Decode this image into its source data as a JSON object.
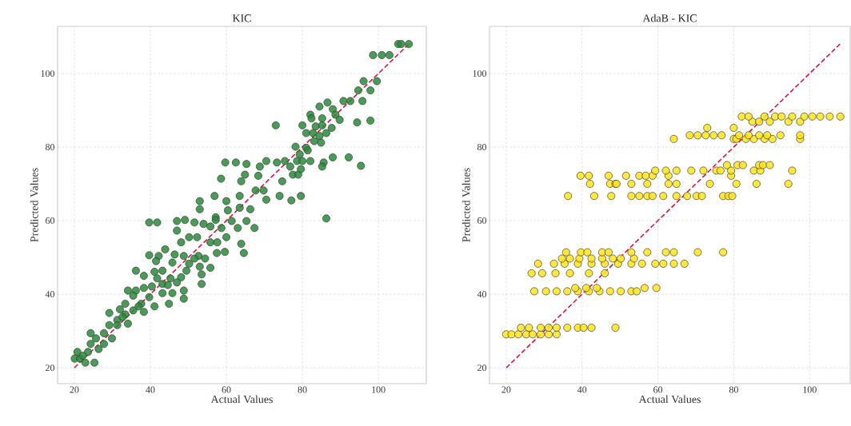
{
  "chart_data": [
    {
      "type": "scatter",
      "title": "KIC",
      "xlabel": "Actual Values",
      "ylabel": "Predicted Values",
      "xlim": [
        15.6,
        112.6
      ],
      "ylim": [
        15.7,
        112.8
      ],
      "xticks": [
        20,
        40,
        60,
        80,
        100
      ],
      "yticks": [
        20,
        40,
        60,
        80,
        100
      ],
      "grid": true,
      "series": [
        {
          "color": "#2a8a3a",
          "marker": "circle",
          "x": [
            105.2,
            106,
            108,
            98.6,
            100.9,
            102.9,
            96.1,
            99.6,
            94.7,
            97.9,
            95.8,
            90.8,
            92.6,
            84.5,
            86.6,
            88,
            88.7,
            89.8,
            82.1,
            82.4,
            85.2,
            94.4,
            97.9,
            73,
            80,
            83.5,
            85.2,
            87.7,
            81,
            82.8,
            84.5,
            86.3,
            83.1,
            84.9,
            78.2,
            81,
            79.3,
            81.4,
            59.7,
            62.5,
            65.3,
            68.8,
            70.5,
            73.3,
            75.4,
            78.6,
            80,
            82.1,
            85.6,
            88,
            92.2,
            95.4,
            85.2,
            76.8,
            64.9,
            63.9,
            58.6,
            68.4,
            74.7,
            77.5,
            78.9,
            79.6,
            67.7,
            69.8,
            70.5,
            74,
            77.1,
            79.6,
            86.3,
            56.9,
            53,
            53,
            60,
            63.5,
            63.5,
            66.3,
            60.4,
            57.2,
            57.2,
            61.4,
            65.3,
            67.4,
            63,
            58.7,
            54,
            55.8,
            51.6,
            47,
            47,
            39.7,
            41.8,
            49.1,
            50.2,
            52.3,
            48.1,
            55.8,
            57.6,
            60,
            63.9,
            64.6,
            59.6,
            57.5,
            43.9,
            39.7,
            42.2,
            46.4,
            48.8,
            52.7,
            54.4,
            41.5,
            45.8,
            50.2,
            55.8,
            53.5,
            53.5,
            48.8,
            48.8,
            44.9,
            36.2,
            38.3,
            41.1,
            43.2,
            45.3,
            48.1,
            49.5,
            47,
            43.2,
            40.4,
            38.3,
            36.2,
            34.1,
            35.5,
            39.7,
            43.2,
            45.8,
            33.4,
            37.6,
            41.1,
            32,
            35.5,
            38.3,
            29.2,
            33.4,
            31.3,
            29.2,
            34.1,
            27.8,
            24.3,
            25.7,
            29.9,
            27.8,
            24.3,
            23.6,
            26.4,
            20.8,
            20.1,
            21.5,
            22.9,
            25.3,
            22.2,
            31.3,
            32.7,
            36.9,
            44.6,
            41.8,
            51.6,
            53
          ],
          "values": [
            108,
            108,
            108,
            105,
            105,
            105,
            97.9,
            97.9,
            95.4,
            95.4,
            92.5,
            92.5,
            92.5,
            91,
            92.1,
            90.3,
            88.8,
            87.4,
            88.8,
            87.8,
            87.8,
            86.7,
            87.2,
            85.9,
            85.9,
            85.6,
            85.9,
            85.2,
            83.8,
            83.8,
            83,
            83.8,
            81.6,
            81.2,
            80.1,
            79.8,
            78,
            79.1,
            75.8,
            75.8,
            75.4,
            74.7,
            76.2,
            75.8,
            76.2,
            76.2,
            76.2,
            76.2,
            75.8,
            77.2,
            77.2,
            74.9,
            74.7,
            74.7,
            72.5,
            70.7,
            71.4,
            72.2,
            70.7,
            72.5,
            72.5,
            74,
            68.2,
            68.2,
            65.7,
            66.7,
            65.5,
            66.7,
            60.6,
            66.7,
            65.3,
            63.1,
            65.3,
            66.7,
            63.5,
            63.1,
            62.8,
            60.9,
            60.2,
            59.9,
            59.9,
            58,
            58,
            58,
            59.1,
            58.4,
            59.5,
            59.9,
            57.3,
            59.5,
            59.5,
            60.2,
            55.5,
            55.5,
            54.1,
            54.1,
            54.1,
            55.5,
            53.7,
            51.2,
            51.5,
            51.2,
            52.2,
            50.6,
            50.4,
            50.8,
            50.4,
            50.4,
            49.7,
            49,
            48.6,
            48.3,
            47.2,
            45.4,
            42.8,
            41,
            38.8,
            37.4,
            46.4,
            45,
            46.1,
            46.4,
            44.3,
            44.6,
            46.4,
            43.2,
            42.8,
            42.1,
            41.7,
            41,
            41,
            39.6,
            39.2,
            40.3,
            40.3,
            37.4,
            37.4,
            36.7,
            35.9,
            35.6,
            35.2,
            34.9,
            34.5,
            33,
            31.6,
            32,
            29.4,
            29.4,
            28,
            28,
            26.5,
            26.5,
            24.3,
            25.1,
            24.3,
            22.5,
            22.5,
            21.4,
            21.4,
            23.3,
            31.6,
            33.8,
            36.7,
            42.5,
            44.3,
            49.7,
            47.5
          ]
        },
        {
          "type": "line",
          "color": "#dc143c",
          "line_style": "dashed",
          "marker": "none",
          "x": [
            20,
            108
          ],
          "values": [
            20,
            108
          ]
        }
      ]
    },
    {
      "type": "scatter",
      "title": "AdaB - KIC",
      "xlabel": "Actual Values",
      "ylabel": "Predicted Values",
      "xlim": [
        15.6,
        110.7
      ],
      "ylim": [
        15.7,
        112.8
      ],
      "xticks": [
        20,
        40,
        60,
        80,
        100
      ],
      "yticks": [
        20,
        40,
        60,
        80,
        100
      ],
      "grid": true,
      "series": [
        {
          "color": "#ffe41a",
          "marker": "circle",
          "x": [
            20,
            21.4,
            23.2,
            25.3,
            27,
            29.1,
            31.2,
            33.3,
            23.9,
            26,
            29.1,
            31.2,
            33.3,
            36.1,
            38.9,
            40.4,
            42.5,
            48.8,
            27.4,
            30.5,
            33.3,
            36.1,
            38.9,
            41.8,
            44.6,
            47.4,
            50.2,
            53,
            54.4,
            56.5,
            59.6,
            38.2,
            41.1,
            43.9,
            26.7,
            29.5,
            33,
            36.8,
            41.8,
            46,
            28.4,
            32.6,
            35.4,
            38.9,
            42.5,
            46,
            49.5,
            53,
            55.8,
            59.3,
            61.4,
            64.2,
            67,
            34.7,
            36.8,
            39.3,
            42.5,
            45.3,
            48.1,
            50.2,
            53.7,
            35.8,
            39.7,
            41.4,
            45.3,
            47,
            53,
            57.2,
            62.1,
            64.2,
            70.5,
            77.2,
            36.3,
            43.2,
            47.7,
            53,
            55.1,
            57.2,
            58.6,
            61.4,
            64.9,
            67.7,
            70.2,
            71.6,
            77.2,
            78.6,
            79.6,
            42.1,
            47.4,
            48.8,
            49.1,
            53,
            57.2,
            62.8,
            64.9,
            73.7,
            80.7,
            86,
            94.4,
            39.6,
            41.8,
            47,
            51.6,
            55.1,
            56.8,
            58.6,
            62.8,
            79.3,
            59.3,
            62.1,
            64.9,
            68.8,
            72,
            75.4,
            76.5,
            79.3,
            85.3,
            87,
            95.4,
            78.2,
            81,
            82.4,
            86.7,
            87.7,
            89.5,
            64.2,
            80,
            80.7,
            83.2,
            85.3,
            88.1,
            90.2,
            97.5,
            68.4,
            70.5,
            72.6,
            74.7,
            76.8,
            81.4,
            83.9,
            86.7,
            88.8,
            92.3,
            97.5,
            73,
            80,
            84.9,
            86.7,
            89.5,
            94.4,
            97.5,
            82.1,
            83.9,
            88.1,
            90.9,
            92.6,
            95.4,
            98.6,
            100.7,
            102.8,
            105.3,
            108.1
          ],
          "values": [
            29.1,
            29.1,
            29.1,
            29.1,
            29.1,
            29.1,
            29.1,
            29.1,
            30.9,
            30.9,
            30.9,
            30.9,
            30.9,
            30.9,
            30.9,
            30.9,
            30.9,
            30.9,
            40.8,
            40.8,
            40.8,
            40.8,
            40.8,
            40.8,
            40.8,
            40.8,
            40.8,
            40.8,
            40.8,
            41.7,
            41.7,
            41.7,
            41.7,
            41.7,
            45.7,
            45.7,
            45.7,
            45.7,
            45.7,
            45.7,
            48.3,
            48.3,
            48.3,
            48.3,
            48.3,
            48.3,
            48.3,
            48.3,
            48.3,
            48.3,
            48.3,
            48.3,
            48.3,
            49.7,
            49.7,
            49.7,
            49.7,
            49.7,
            49.7,
            49.7,
            49.7,
            51.4,
            51.4,
            51.4,
            51.4,
            51.4,
            51.4,
            51.4,
            51.4,
            51.4,
            51.4,
            51.4,
            66.7,
            66.7,
            66.7,
            66.7,
            66.7,
            66.7,
            66.7,
            66.7,
            66.7,
            66.7,
            66.7,
            66.7,
            66.7,
            66.7,
            66.7,
            70,
            70,
            70,
            70,
            70,
            70,
            70,
            70,
            70,
            70,
            70,
            70,
            72.2,
            72.2,
            72.2,
            72.2,
            72.2,
            72.2,
            72.2,
            72.2,
            72.2,
            73.6,
            73.6,
            73.6,
            73.6,
            73.6,
            73.6,
            73.6,
            73.6,
            73.6,
            73.6,
            73.6,
            75.1,
            75.1,
            75.1,
            75.1,
            75.1,
            75.1,
            82.2,
            82.2,
            82.2,
            82.2,
            82.2,
            82.2,
            82.2,
            82.2,
            83.2,
            83.2,
            83.2,
            83.2,
            83.2,
            83.2,
            83.2,
            83.2,
            83.2,
            83.2,
            83.2,
            85.2,
            85.2,
            86.9,
            86.9,
            86.9,
            86.9,
            86.9,
            88.3,
            88.3,
            88.3,
            88.3,
            88.3,
            88.3,
            88.3,
            88.3,
            88.3,
            88.3,
            88.3
          ]
        },
        {
          "type": "line",
          "color": "#dc143c",
          "line_style": "dashed",
          "marker": "none",
          "x": [
            20,
            108
          ],
          "values": [
            20,
            108
          ]
        }
      ]
    }
  ]
}
